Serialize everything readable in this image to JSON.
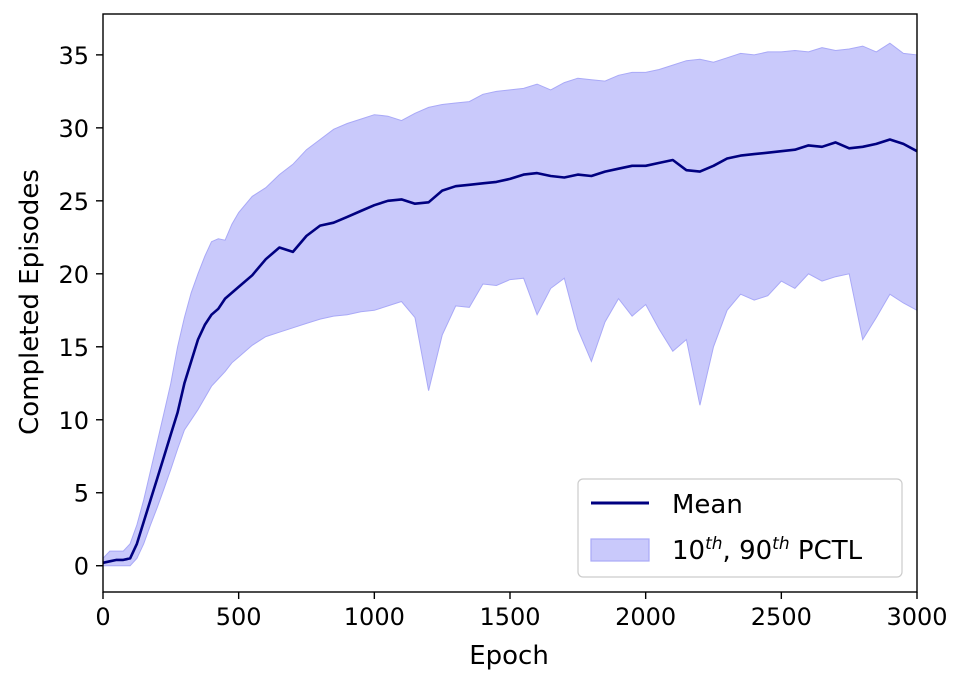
{
  "chart_data": {
    "type": "line",
    "xlabel": "Epoch",
    "ylabel": "Completed Episodes",
    "xlim": [
      0,
      3000
    ],
    "ylim": [
      -1.8,
      37.8
    ],
    "x_ticks": [
      0,
      500,
      1000,
      1500,
      2000,
      2500,
      3000
    ],
    "x_tick_labels": [
      "0",
      "500",
      "1000",
      "1500",
      "2000",
      "2500",
      "3000"
    ],
    "y_ticks": [
      0,
      5,
      10,
      15,
      20,
      25,
      30,
      35
    ],
    "y_tick_labels": [
      "0",
      "5",
      "10",
      "15",
      "20",
      "25",
      "30",
      "35"
    ],
    "grid": false,
    "legend_position": "lower right",
    "legend": {
      "mean_label": "Mean",
      "band_label_parts": [
        "10",
        "th",
        ", 90",
        "th",
        " PCTL"
      ]
    },
    "colors": {
      "mean": "#000080",
      "band_fill": "#c9c9fb",
      "band_edge": "#a9a9f7"
    },
    "x": [
      0,
      25,
      50,
      75,
      100,
      125,
      150,
      175,
      200,
      225,
      250,
      275,
      300,
      325,
      350,
      375,
      400,
      425,
      450,
      475,
      500,
      550,
      600,
      650,
      700,
      750,
      800,
      850,
      900,
      950,
      1000,
      1050,
      1100,
      1150,
      1200,
      1250,
      1300,
      1350,
      1400,
      1450,
      1500,
      1550,
      1600,
      1650,
      1700,
      1750,
      1800,
      1850,
      1900,
      1950,
      2000,
      2050,
      2100,
      2150,
      2200,
      2250,
      2300,
      2350,
      2400,
      2450,
      2500,
      2550,
      2600,
      2650,
      2700,
      2750,
      2800,
      2850,
      2900,
      2950,
      3000
    ],
    "series": [
      {
        "name": "Mean",
        "role": "line",
        "values": [
          0.2,
          0.3,
          0.4,
          0.4,
          0.5,
          1.5,
          3.0,
          4.5,
          6.0,
          7.5,
          9.0,
          10.5,
          12.5,
          14.0,
          15.5,
          16.5,
          17.2,
          17.6,
          18.3,
          18.7,
          19.1,
          19.9,
          21.0,
          21.8,
          21.5,
          22.6,
          23.3,
          23.5,
          23.9,
          24.3,
          24.7,
          25.0,
          25.1,
          24.8,
          24.9,
          25.7,
          26.0,
          26.1,
          26.2,
          26.3,
          26.5,
          26.8,
          26.9,
          26.7,
          26.6,
          26.8,
          26.7,
          27.0,
          27.2,
          27.4,
          27.4,
          27.6,
          27.8,
          27.1,
          27.0,
          27.4,
          27.9,
          28.1,
          28.2,
          28.3,
          28.4,
          28.5,
          28.8,
          28.7,
          29.0,
          28.6,
          28.7,
          28.9,
          29.2,
          28.9,
          28.4
        ]
      },
      {
        "name": "10th percentile",
        "role": "band_lower",
        "values": [
          0.0,
          0.0,
          0.0,
          0.0,
          0.0,
          0.5,
          1.5,
          2.8,
          4.0,
          5.3,
          6.6,
          8.0,
          9.3,
          10.0,
          10.7,
          11.5,
          12.3,
          12.8,
          13.3,
          13.9,
          14.3,
          15.1,
          15.7,
          16.0,
          16.3,
          16.6,
          16.9,
          17.1,
          17.2,
          17.4,
          17.5,
          17.8,
          18.1,
          17.0,
          12.0,
          15.8,
          17.8,
          17.7,
          19.3,
          19.2,
          19.6,
          19.7,
          17.2,
          19.0,
          19.7,
          16.2,
          14.0,
          16.7,
          18.3,
          17.1,
          17.9,
          16.2,
          14.7,
          15.5,
          11.0,
          15.0,
          17.5,
          18.6,
          18.2,
          18.5,
          19.5,
          19.0,
          20.0,
          19.5,
          19.8,
          20.0,
          15.5,
          17.0,
          18.6,
          18.0,
          17.5
        ]
      },
      {
        "name": "90th percentile",
        "role": "band_upper",
        "values": [
          0.5,
          1.0,
          1.0,
          1.0,
          1.5,
          2.8,
          4.5,
          6.5,
          8.5,
          10.5,
          12.5,
          15.0,
          17.0,
          18.7,
          20.0,
          21.2,
          22.2,
          22.4,
          22.3,
          23.4,
          24.2,
          25.3,
          25.9,
          26.8,
          27.5,
          28.5,
          29.2,
          29.9,
          30.3,
          30.6,
          30.9,
          30.8,
          30.5,
          31.0,
          31.4,
          31.6,
          31.7,
          31.8,
          32.3,
          32.5,
          32.6,
          32.7,
          33.0,
          32.6,
          33.1,
          33.4,
          33.3,
          33.2,
          33.6,
          33.8,
          33.8,
          34.0,
          34.3,
          34.6,
          34.7,
          34.5,
          34.8,
          35.1,
          35.0,
          35.2,
          35.2,
          35.3,
          35.2,
          35.5,
          35.3,
          35.4,
          35.6,
          35.2,
          35.8,
          35.1,
          35.0
        ]
      }
    ]
  }
}
